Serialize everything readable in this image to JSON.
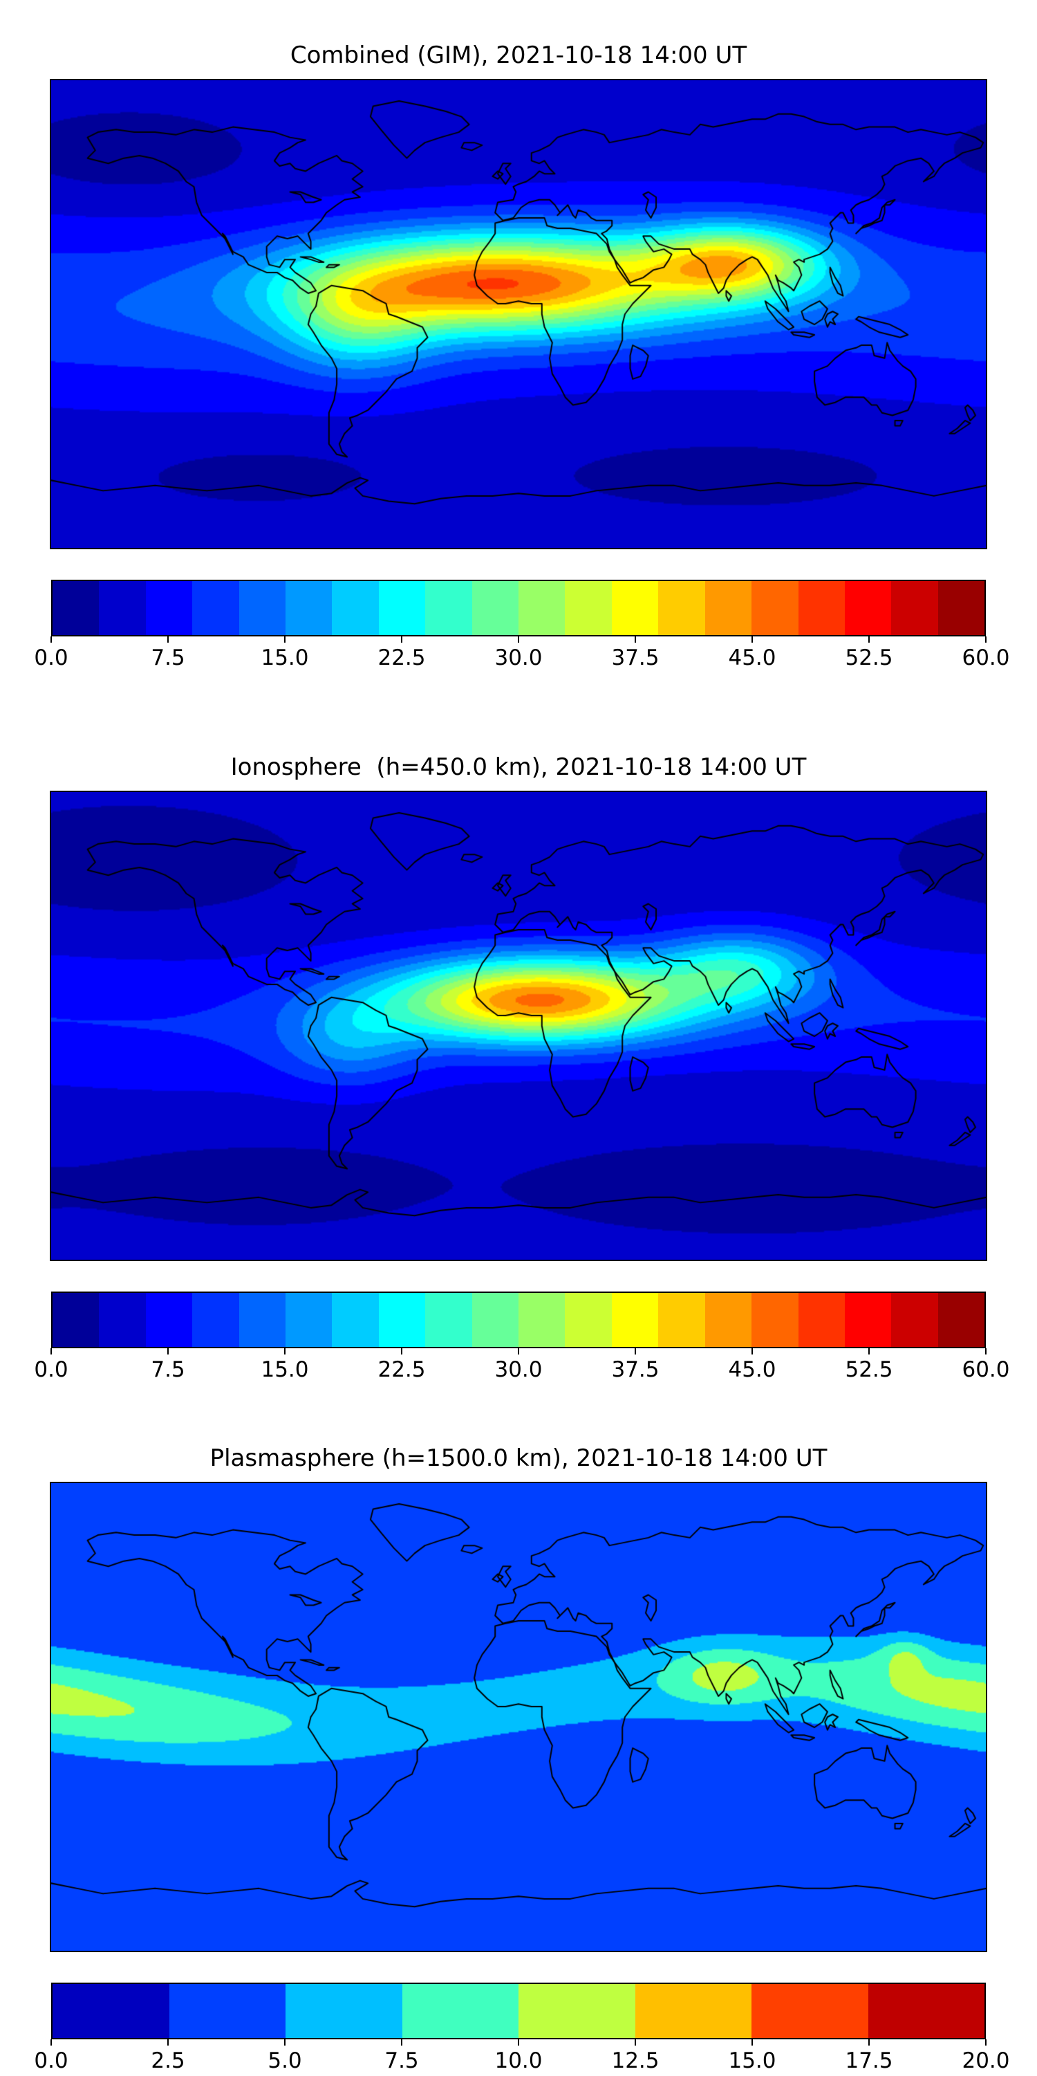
{
  "panels": [
    {
      "title": "Combined (GIM), 2021-10-18 14:00 UT",
      "colorbar_ticks": [
        "0.0",
        "7.5",
        "15.0",
        "22.5",
        "30.0",
        "37.5",
        "45.0",
        "52.5",
        "60.0"
      ]
    },
    {
      "title": "Ionosphere  (h=450.0 km), 2021-10-18 14:00 UT",
      "colorbar_ticks": [
        "0.0",
        "7.5",
        "15.0",
        "22.5",
        "30.0",
        "37.5",
        "45.0",
        "52.5",
        "60.0"
      ]
    },
    {
      "title": "Plasmasphere (h=1500.0 km), 2021-10-18 14:00 UT",
      "colorbar_ticks": [
        "0.0",
        "2.5",
        "5.0",
        "7.5",
        "10.0",
        "12.5",
        "15.0",
        "17.5",
        "20.0"
      ]
    }
  ],
  "chart_data": [
    {
      "type": "heatmap",
      "title": "Combined (GIM), 2021-10-18 14:00 UT",
      "projection": "equirectangular",
      "lon_range": [
        -180,
        180
      ],
      "lat_range": [
        -90,
        90
      ],
      "colormap": "jet",
      "vmin": 0,
      "vmax": 60,
      "level_step": 3,
      "colorbar_ticks": [
        0,
        7.5,
        15,
        22.5,
        30,
        37.5,
        45,
        52.5,
        60
      ],
      "peak_value_approx": 48,
      "peak_location_approx": {
        "lon": -8,
        "lat": 12
      },
      "field_model": {
        "base": 4.5,
        "band": {
          "amp": 7,
          "lat0": 5,
          "tilt": 5,
          "lon_ref": 60,
          "slat": 22,
          "mod": 0,
          "mod_lon": 0
        },
        "blobs": [
          {
            "amp": 37,
            "lon": -8,
            "lat": 12,
            "slon": 52,
            "slat": 13
          },
          {
            "amp": 26,
            "lon": 83,
            "lat": 20,
            "slon": 24,
            "slat": 10
          },
          {
            "amp": 12,
            "lon": -62,
            "lat": -4,
            "slon": 20,
            "slat": 14
          },
          {
            "amp": -3.5,
            "lon": -150,
            "lat": 62,
            "slon": 35,
            "slat": 12
          },
          {
            "amp": -3,
            "lon": 80,
            "lat": -62,
            "slon": 50,
            "slat": 10
          },
          {
            "amp": -2.5,
            "lon": -100,
            "lat": -62,
            "slon": 40,
            "slat": 10
          }
        ]
      }
    },
    {
      "type": "heatmap",
      "title": "Ionosphere  (h=450.0 km), 2021-10-18 14:00 UT",
      "projection": "equirectangular",
      "lon_range": [
        -180,
        180
      ],
      "lat_range": [
        -90,
        90
      ],
      "colormap": "jet",
      "vmin": 0,
      "vmax": 60,
      "level_step": 3,
      "colorbar_ticks": [
        0,
        7.5,
        15,
        22.5,
        30,
        37.5,
        45,
        52.5,
        60
      ],
      "peak_value_approx": 46,
      "peak_location_approx": {
        "lon": 8,
        "lat": 10
      },
      "field_model": {
        "base": 3.5,
        "band": {
          "amp": 5.5,
          "lat0": 5,
          "tilt": 5,
          "lon_ref": 60,
          "slat": 20,
          "mod": 0,
          "mod_lon": 0
        },
        "blobs": [
          {
            "amp": 37,
            "lon": 8,
            "lat": 10,
            "slon": 40,
            "slat": 11
          },
          {
            "amp": 15,
            "lon": 85,
            "lat": 22,
            "slon": 22,
            "slat": 10
          },
          {
            "amp": 8,
            "lon": -65,
            "lat": -6,
            "slon": 18,
            "slat": 12
          },
          {
            "amp": -3,
            "lon": -150,
            "lat": 62,
            "slon": 35,
            "slat": 12
          },
          {
            "amp": -2.5,
            "lon": 90,
            "lat": -62,
            "slon": 50,
            "slat": 10
          },
          {
            "amp": -2,
            "lon": -100,
            "lat": -60,
            "slon": 40,
            "slat": 10
          }
        ]
      }
    },
    {
      "type": "heatmap",
      "title": "Plasmasphere (h=1500.0 km), 2021-10-18 14:00 UT",
      "projection": "equirectangular",
      "lon_range": [
        -180,
        180
      ],
      "lat_range": [
        -90,
        90
      ],
      "colormap": "jet",
      "vmin": 0,
      "vmax": 20,
      "level_step": 2.5,
      "colorbar_ticks": [
        0,
        2.5,
        5,
        7.5,
        10,
        12.5,
        15,
        17.5,
        20
      ],
      "peak_value_approx": 11.5,
      "peak_location_approx": {
        "lon": 78,
        "lat": 16
      },
      "field_model": {
        "base": 2.6,
        "band": {
          "amp": 4.42,
          "lat0": 6,
          "tilt": 9,
          "lon_ref": 95,
          "slat": 13,
          "mod": 0.235,
          "mod_lon": 180
        },
        "blobs": [
          {
            "amp": 1.9,
            "lon": -152,
            "lat": 3,
            "slon": 42,
            "slat": 13
          },
          {
            "amp": 1.8,
            "lon": 160,
            "lat": 12,
            "slon": 28,
            "slat": 11
          },
          {
            "amp": 4.5,
            "lon": 78,
            "lat": 16,
            "slon": 15,
            "slat": 8
          },
          {
            "amp": 3.4,
            "lon": 149,
            "lat": 24,
            "slon": 7,
            "slat": 5
          }
        ]
      }
    }
  ]
}
